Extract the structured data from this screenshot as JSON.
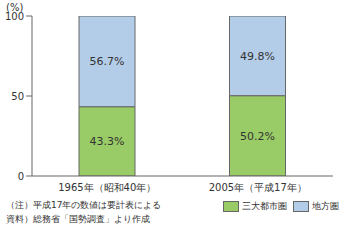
{
  "chart_data": {
    "type": "bar",
    "stacked": true,
    "data_labels": true,
    "y_label": "(%)",
    "categories": [
      "1965年（昭和40年）",
      "2005年（平成17年）"
    ],
    "series": [
      {
        "name": "三大都市圏",
        "color": "#99cc66",
        "values": [
          43.3,
          50.2
        ],
        "value_labels": [
          "43.3%",
          "50.2%"
        ]
      },
      {
        "name": "地方圏",
        "color": "#b3cde8",
        "values": [
          56.7,
          49.8
        ],
        "value_labels": [
          "56.7%",
          "49.8%"
        ]
      }
    ],
    "ylim": [
      0,
      100
    ],
    "yticks": [
      0,
      50,
      100
    ],
    "annotations": [
      "（注）平成17年の数値は要計表による",
      "資料）総務省「国勢調査」より作成"
    ],
    "legend": "bottom right"
  }
}
